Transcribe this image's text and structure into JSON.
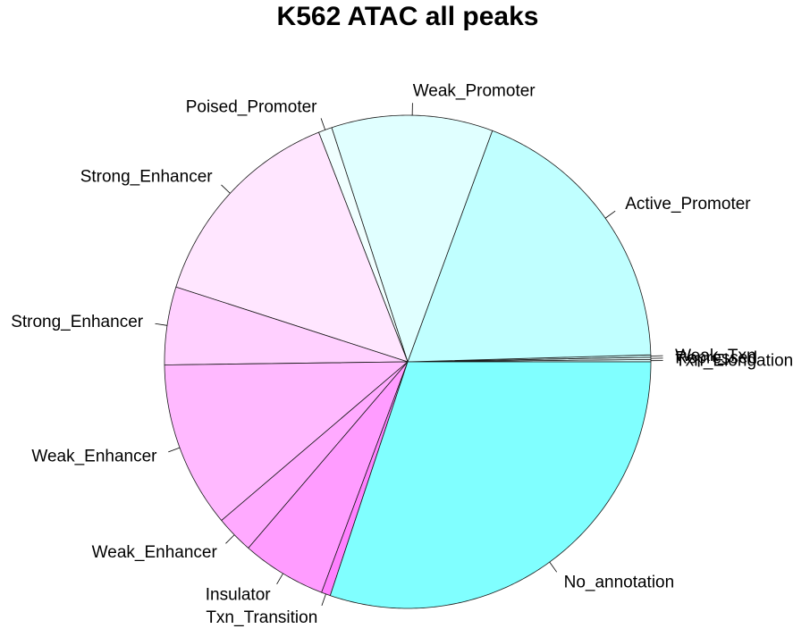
{
  "chart_data": {
    "type": "pie",
    "title": "K562 ATAC all peaks",
    "start_angle_deg": 0,
    "direction": "counterclockwise",
    "slices": [
      {
        "label": "Txn_Elongation",
        "value": 0.15,
        "color": "#d9ffff"
      },
      {
        "label": "Repressed",
        "value": 0.15,
        "color": "#e6ffff"
      },
      {
        "label": "Weak_Txn",
        "value": 0.15,
        "color": "#d0ffff"
      },
      {
        "label": "Active_Promoter",
        "value": 18.85,
        "color": "#c0ffff"
      },
      {
        "label": "Weak_Promoter",
        "value": 10.7,
        "color": "#e0ffff"
      },
      {
        "label": "Poised_Promoter",
        "value": 0.9,
        "color": "#f0ffff"
      },
      {
        "label": "Strong_Enhancer",
        "value": 14.1,
        "color": "#ffe6ff"
      },
      {
        "label": "Strong_Enhancer",
        "value": 5.1,
        "color": "#ffd0ff"
      },
      {
        "label": "Weak_Enhancer",
        "value": 10.9,
        "color": "#ffb9ff"
      },
      {
        "label": "Weak_Enhancer",
        "value": 2.5,
        "color": "#ffaaff"
      },
      {
        "label": "Insulator",
        "value": 5.6,
        "color": "#ff9cff"
      },
      {
        "label": "Txn_Transition",
        "value": 0.6,
        "color": "#ff80ff"
      },
      {
        "label": "No_annotation",
        "value": 30.1,
        "color": "#80ffff"
      }
    ]
  }
}
